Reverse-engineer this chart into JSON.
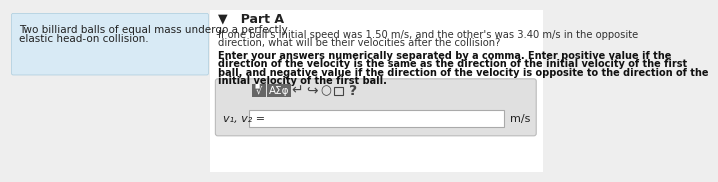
{
  "background_color": "#eeeeee",
  "left_panel_bg": "#d8eaf5",
  "right_panel_bg": "#ffffff",
  "left_text_line1": "Two billiard balls of equal mass undergo a perfectly",
  "left_text_line2": "elastic head-on collision.",
  "part_label": "▼   Part A",
  "question_line1": "If one ball's initial speed was 1.50 m/s, and the other's was 3.40 m/s in the opposite",
  "question_line2": "direction, what will be their velocities after the collision?",
  "instr_line1": "Enter your answers numerically separated by a comma. Enter positive value if the",
  "instr_line2": "direction of the velocity is the same as the direction of the initial velocity of the first",
  "instr_line3": "ball, and negative value if the direction of the velocity is opposite to the direction of the",
  "instr_line4": "initial velocity of the first ball.",
  "input_label": "v₁, v₂ =",
  "unit_label": "m/s",
  "input_box_bg": "#ffffff",
  "input_box_border": "#aaaaaa",
  "toolbar_area_bg": "#e0e0e0",
  "toolbar_area_border": "#bbbbbb",
  "btn_dark_bg": "#666666",
  "btn_dark_text": "#ffffff",
  "icon_color": "#444444"
}
